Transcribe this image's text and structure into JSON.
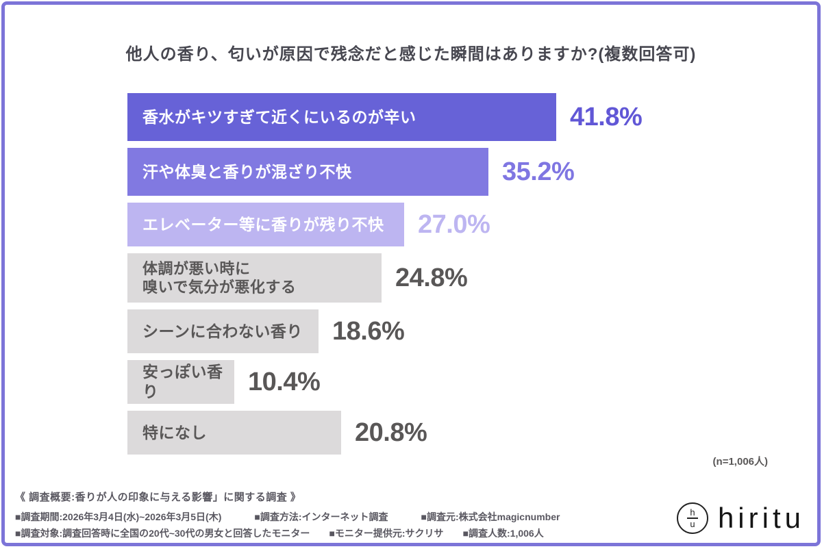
{
  "frame": {
    "border_color": "#7c74d8",
    "background": "#ffffff"
  },
  "title": "他人の香り、匂いが原因で残念だと感じた瞬間はありますか?(複数回答可)",
  "chart_data": {
    "type": "bar",
    "orientation": "horizontal",
    "categories": [
      "香水がキツすぎて近くにいるのが辛い",
      "汗や体臭と香りが混ざり不快",
      "エレベーター等に香りが残り不快",
      "体調が悪い時に\n嗅いで気分が悪化する",
      "シーンに合わない香り",
      "安っぽい香り",
      "特になし"
    ],
    "values": [
      41.8,
      35.2,
      27.0,
      24.8,
      18.6,
      10.4,
      20.8
    ],
    "value_labels": [
      "41.8%",
      "35.2%",
      "27.0%",
      "24.8%",
      "18.6%",
      "10.4%",
      "20.8%"
    ],
    "bar_colors": [
      "#6762d7",
      "#8179e1",
      "#bdb5f1",
      "#dcdadb",
      "#dcdadb",
      "#dcdadb",
      "#dcdadb"
    ],
    "value_colors": [
      "#6157d6",
      "#7f76e2",
      "#bdb5f1",
      "#595757",
      "#595757",
      "#595757",
      "#595757"
    ],
    "label_colors": [
      "#ffffff",
      "#ffffff",
      "#ffffff",
      "#595757",
      "#595757",
      "#595757",
      "#595757"
    ],
    "xlim": [
      0,
      41.8
    ],
    "note": "(n=1,006人)"
  },
  "footer": {
    "summary": "《 調査概要:香りが人の印象に与える影響」に関する調査 》",
    "line2": [
      "■調査期間:2026年3月4日(水)~2026年3月5日(木)",
      "■調査方法:インターネット調査",
      "■調査元:株式会社magicnumber"
    ],
    "line3": [
      "■調査対象:調査回答時に全国の20代~30代の男女と回答したモニター",
      "■モニター提供元:サクリサ",
      "■調査人数:1,006人"
    ]
  },
  "logo": {
    "mark_top": "h",
    "mark_bottom": "u",
    "text": "hiritu"
  }
}
